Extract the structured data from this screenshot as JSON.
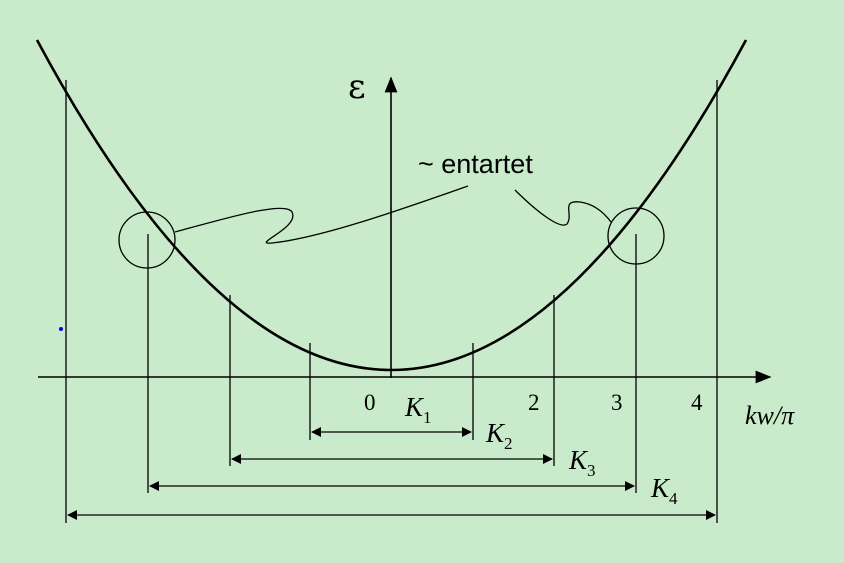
{
  "diagram": {
    "y_axis_label": "ε",
    "x_axis_label": "kw/π",
    "annotation": "~ entartet",
    "ticks": [
      "0",
      "2",
      "3",
      "4"
    ],
    "k_labels": [
      {
        "main": "K",
        "sub": "1"
      },
      {
        "main": "K",
        "sub": "2"
      },
      {
        "main": "K",
        "sub": "3"
      },
      {
        "main": "K",
        "sub": "4"
      }
    ],
    "colors": {
      "background": "#c9ebcb",
      "ink": "#000000",
      "dot": "#0000ee"
    }
  }
}
